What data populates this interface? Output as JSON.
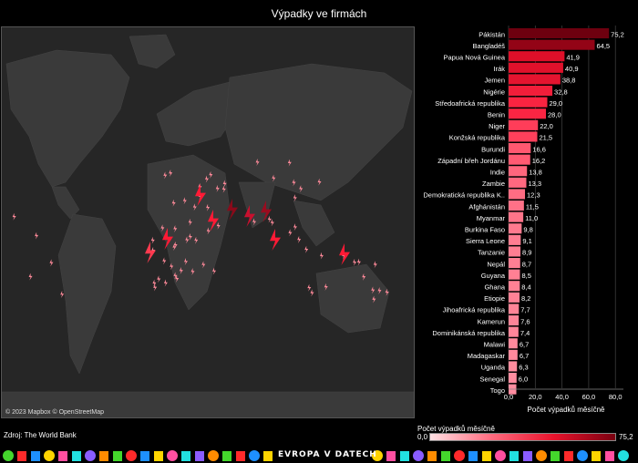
{
  "title": "Výpadky ve firmách",
  "map": {
    "attribution": "© 2023 Mapbox © OpenStreetMap"
  },
  "source": "Zdroj: The World Bank",
  "legend": {
    "title": "Počet výpadků měsíčně",
    "min_label": "0,0",
    "max_label": "75,2"
  },
  "footer": {
    "brand": "EVROPA V DATECH"
  },
  "colors": {
    "background": "#000000",
    "map_bg": "#262626",
    "bar_low": "#ff8a9a",
    "bar_mid": "#ff1a35",
    "bar_high": "#7a0010"
  },
  "chart_data": {
    "type": "bar",
    "orientation": "horizontal",
    "categories": [
      "Pákistán",
      "Bangladéš",
      "Papua Nová Guinea",
      "Irák",
      "Jemen",
      "Nigérie",
      "Středoafrická republika",
      "Benin",
      "Niger",
      "Konžská republika",
      "Burundi",
      "Západní břeh Jordánu",
      "Indie",
      "Zambie",
      "Demokratická republika K..",
      "Afghánistán",
      "Myanmar",
      "Burkina Faso",
      "Sierra Leone",
      "Tanzanie",
      "Nepál",
      "Guyana",
      "Ghana",
      "Etiopie",
      "Jihoafrická republika",
      "Kamerun",
      "Dominikánská republika",
      "Malawi",
      "Madagaskar",
      "Uganda",
      "Senegal",
      "Togo"
    ],
    "values": [
      75.2,
      64.5,
      41.9,
      40.9,
      38.8,
      32.8,
      29.0,
      28.0,
      22.0,
      21.5,
      16.6,
      16.2,
      13.8,
      13.3,
      12.3,
      11.5,
      11.0,
      9.8,
      9.1,
      8.9,
      8.7,
      8.5,
      8.4,
      8.2,
      7.7,
      7.6,
      7.4,
      6.7,
      6.7,
      6.3,
      6.0,
      5.8
    ],
    "value_labels": [
      "75,2",
      "64,5",
      "41,9",
      "40,9",
      "38,8",
      "32,8",
      "29,0",
      "28,0",
      "22,0",
      "21,5",
      "16,6",
      "16,2",
      "13,8",
      "13,3",
      "12,3",
      "11,5",
      "11,0",
      "9,8",
      "9,1",
      "8,9",
      "8,7",
      "8,5",
      "8,4",
      "8,2",
      "7,7",
      "7,6",
      "7,4",
      "6,7",
      "6,7",
      "6,3",
      "6,0",
      ""
    ],
    "xlabel": "Počet výpadků měsíčně",
    "x_ticks": [
      "0,0",
      "20,0",
      "40,0",
      "60,0",
      "80,0"
    ],
    "x_tick_values": [
      0,
      20,
      40,
      60,
      80
    ],
    "xlim": [
      0,
      86
    ],
    "grid": true
  }
}
